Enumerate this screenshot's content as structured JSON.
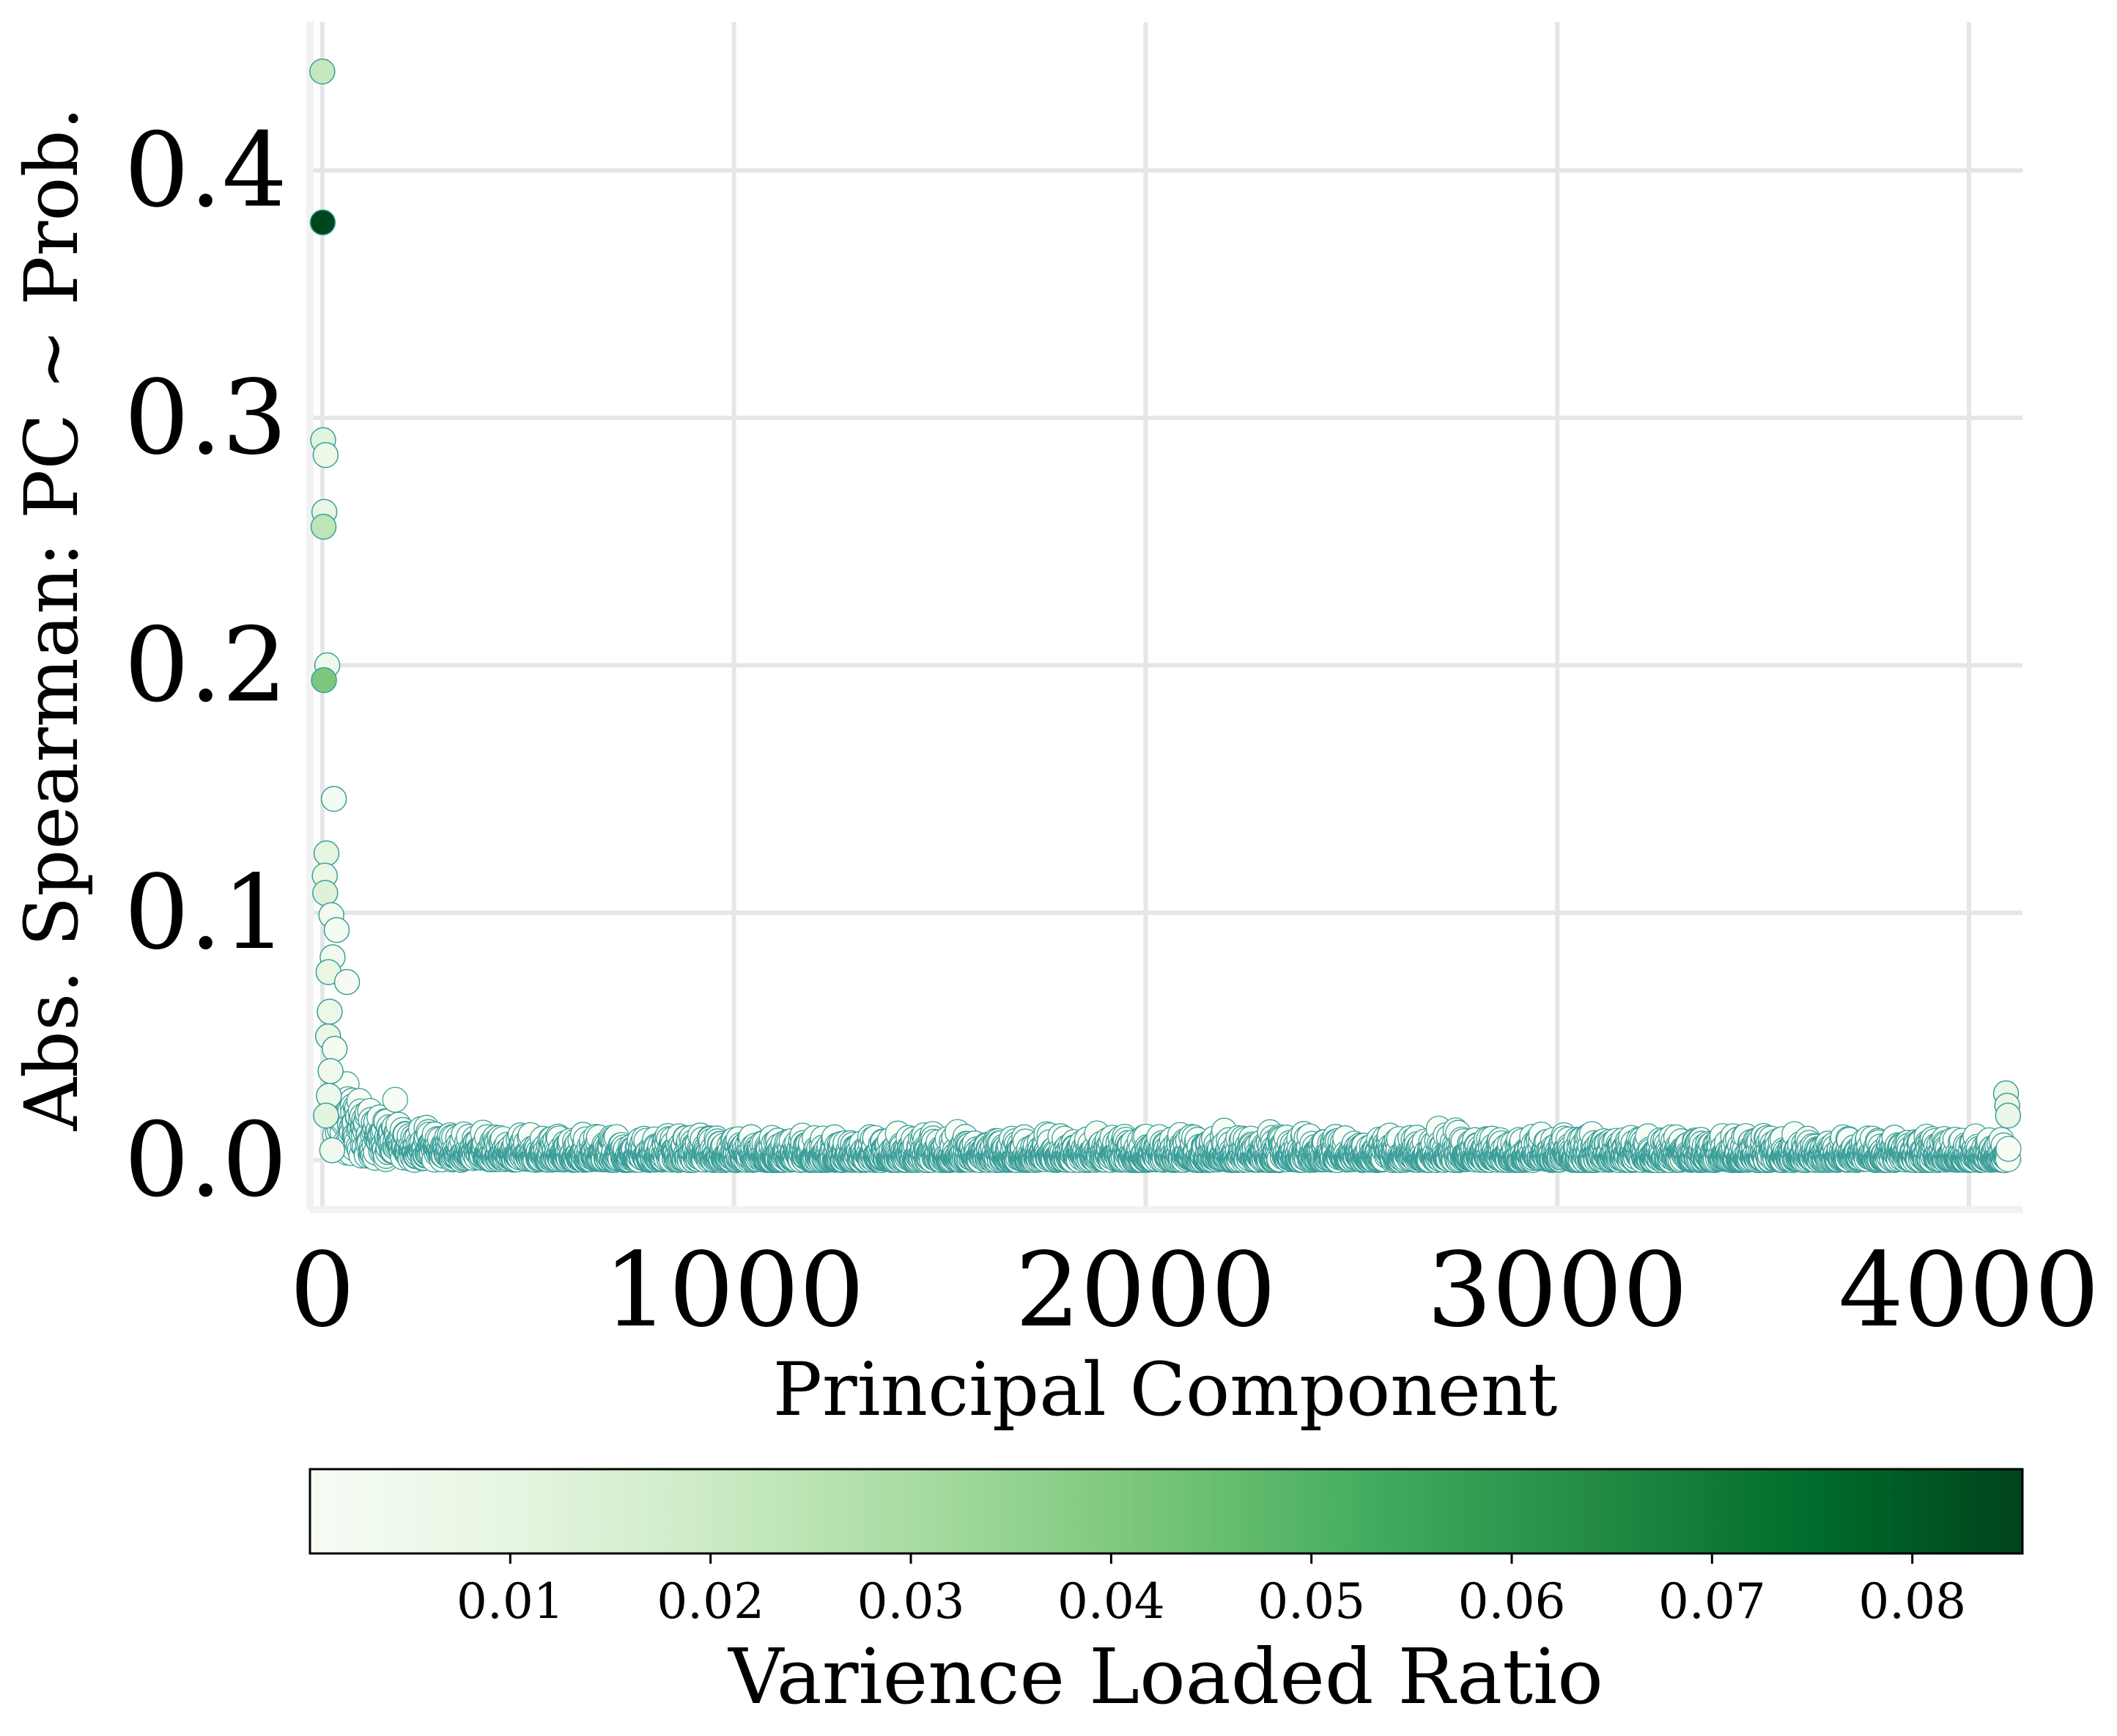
{
  "chart_data": {
    "type": "scatter",
    "title": "",
    "xlabel": "Principal Component",
    "ylabel": "Abs. Spearman: PC ~ Prob.",
    "xlim": [
      -30,
      4130
    ],
    "ylim": [
      -0.02,
      0.46
    ],
    "xticks": [
      0,
      1000,
      2000,
      3000,
      4000
    ],
    "xtick_labels": [
      "0",
      "1000",
      "2000",
      "3000",
      "4000"
    ],
    "yticks": [
      0.0,
      0.1,
      0.2,
      0.3,
      0.4
    ],
    "ytick_labels": [
      "0.0",
      "0.1",
      "0.2",
      "0.3",
      "0.4"
    ],
    "grid": true,
    "marker_edge_color": "#3a9e99",
    "highlighted_points": [
      {
        "x": 0,
        "y": 0.44,
        "variance_ratio": 0.022
      },
      {
        "x": 1,
        "y": 0.379,
        "variance_ratio": 0.085
      },
      {
        "x": 2,
        "y": 0.291,
        "variance_ratio": 0.012
      },
      {
        "x": 8,
        "y": 0.285,
        "variance_ratio": 0.006
      },
      {
        "x": 5,
        "y": 0.262,
        "variance_ratio": 0.009
      },
      {
        "x": 3,
        "y": 0.256,
        "variance_ratio": 0.024
      },
      {
        "x": 12,
        "y": 0.2,
        "variance_ratio": 0.004
      },
      {
        "x": 4,
        "y": 0.194,
        "variance_ratio": 0.041
      },
      {
        "x": 28,
        "y": 0.146,
        "variance_ratio": 0.002
      },
      {
        "x": 10,
        "y": 0.124,
        "variance_ratio": 0.01
      },
      {
        "x": 6,
        "y": 0.115,
        "variance_ratio": 0.008
      },
      {
        "x": 7,
        "y": 0.108,
        "variance_ratio": 0.013
      },
      {
        "x": 22,
        "y": 0.099,
        "variance_ratio": 0.003
      },
      {
        "x": 35,
        "y": 0.093,
        "variance_ratio": 0.002
      },
      {
        "x": 25,
        "y": 0.082,
        "variance_ratio": 0.003
      },
      {
        "x": 15,
        "y": 0.076,
        "variance_ratio": 0.009
      },
      {
        "x": 60,
        "y": 0.072,
        "variance_ratio": 0.001
      },
      {
        "x": 18,
        "y": 0.06,
        "variance_ratio": 0.007
      },
      {
        "x": 14,
        "y": 0.05,
        "variance_ratio": 0.008
      },
      {
        "x": 30,
        "y": 0.045,
        "variance_ratio": 0.002
      },
      {
        "x": 20,
        "y": 0.036,
        "variance_ratio": 0.005
      },
      {
        "x": 16,
        "y": 0.026,
        "variance_ratio": 0.006
      },
      {
        "x": 9,
        "y": 0.018,
        "variance_ratio": 0.011
      },
      {
        "x": 24,
        "y": 0.004,
        "variance_ratio": 0.004
      }
    ],
    "bulk_points": {
      "x_range": [
        30,
        4096
      ],
      "abs_spearman_typical": [
        0.0,
        0.02
      ],
      "tail_points": [
        {
          "x": 4090,
          "y": 0.027
        },
        {
          "x": 4093,
          "y": 0.022
        },
        {
          "x": 4095,
          "y": 0.018
        }
      ]
    },
    "colorbar": {
      "label": "Varience Loaded Ratio",
      "orientation": "horizontal",
      "placement": "bottom",
      "range": [
        0.0,
        0.0855
      ],
      "ticks": [
        0.01,
        0.02,
        0.03,
        0.04,
        0.05,
        0.06,
        0.07,
        0.08
      ],
      "tick_labels": [
        "0.01",
        "0.02",
        "0.03",
        "0.04",
        "0.05",
        "0.06",
        "0.07",
        "0.08"
      ],
      "colormap": "Greens",
      "colormap_stops": [
        "#f7fcf5",
        "#e5f5e0",
        "#c7e9c0",
        "#a1d99b",
        "#74c476",
        "#41ab5d",
        "#238b45",
        "#006d2c",
        "#00441b"
      ]
    }
  }
}
